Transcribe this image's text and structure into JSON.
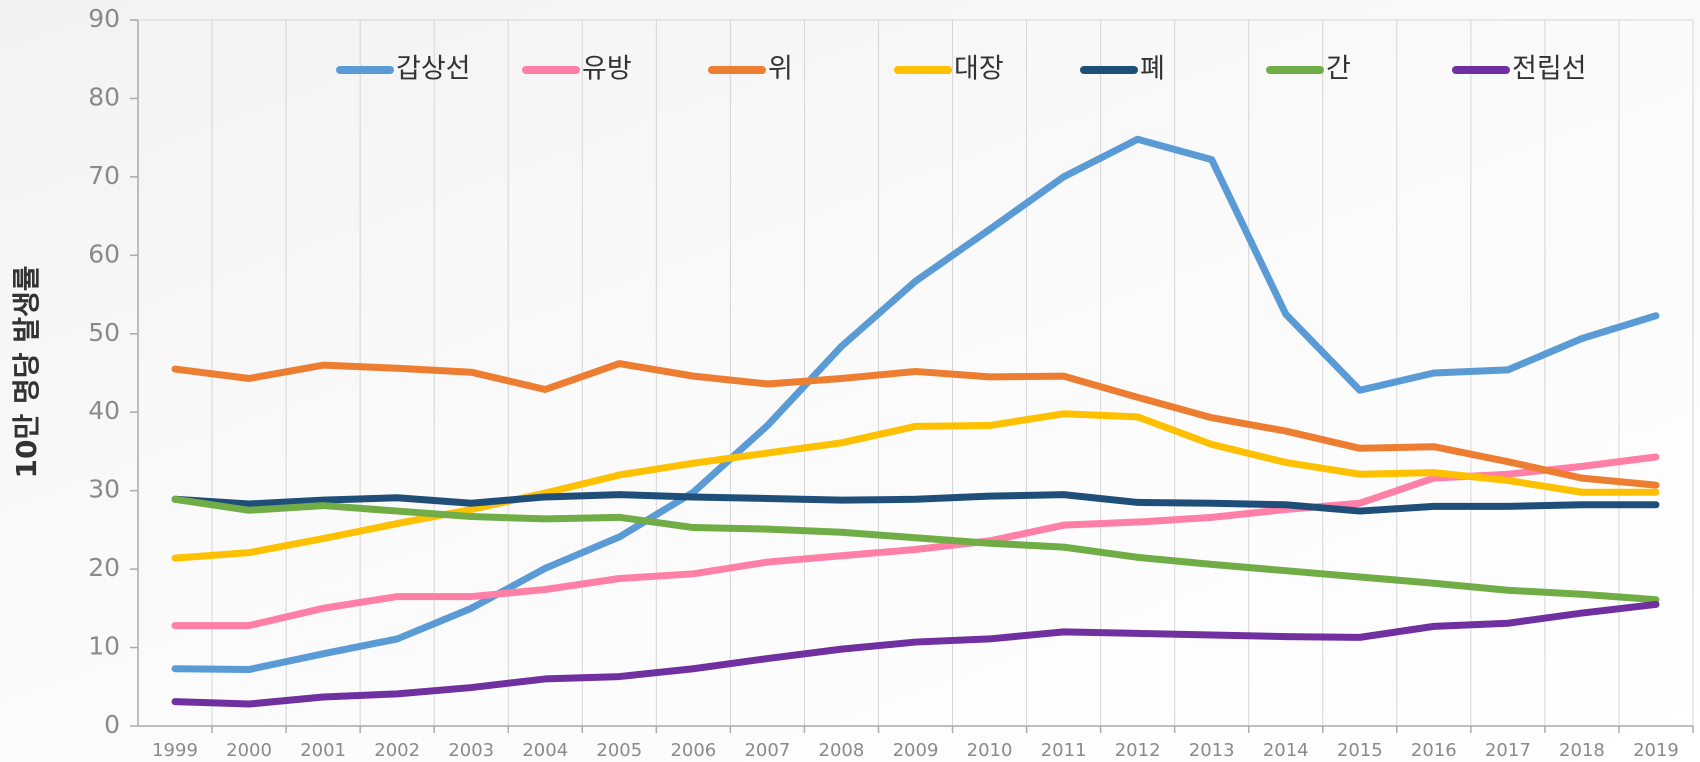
{
  "chart_data": {
    "type": "line",
    "y_label": "10만 명당 발생률",
    "categories": [
      "1999",
      "2000",
      "2001",
      "2002",
      "2003",
      "2004",
      "2005",
      "2006",
      "2007",
      "2008",
      "2009",
      "2010",
      "2011",
      "2012",
      "2013",
      "2014",
      "2015",
      "2016",
      "2017",
      "2018",
      "2019"
    ],
    "series": [
      {
        "name": "갑상선",
        "color": "#5b9bd5",
        "values": [
          7.3,
          7.2,
          9.2,
          11.1,
          15.0,
          20.1,
          24.1,
          29.8,
          38.3,
          48.4,
          56.7,
          63.3,
          70.0,
          74.8,
          72.2,
          52.5,
          42.8,
          45.0,
          45.4,
          49.4,
          52.3
        ]
      },
      {
        "name": "유방",
        "color": "#ff7fa6",
        "values": [
          12.8,
          12.8,
          15.0,
          16.5,
          16.5,
          17.4,
          18.8,
          19.4,
          20.9,
          21.7,
          22.5,
          23.6,
          25.6,
          26.0,
          26.6,
          27.6,
          28.4,
          31.6,
          32.1,
          33.1,
          34.3
        ]
      },
      {
        "name": "위",
        "color": "#ed7d31",
        "values": [
          45.5,
          44.3,
          46.0,
          45.6,
          45.1,
          42.9,
          46.2,
          44.6,
          43.6,
          44.3,
          45.2,
          44.5,
          44.6,
          41.9,
          39.3,
          37.6,
          35.4,
          35.6,
          33.7,
          31.6,
          30.7
        ]
      },
      {
        "name": "대장",
        "color": "#ffc000",
        "values": [
          21.4,
          22.1,
          23.9,
          25.8,
          27.6,
          29.7,
          32.0,
          33.5,
          34.8,
          36.1,
          38.2,
          38.3,
          39.8,
          39.4,
          35.9,
          33.6,
          32.1,
          32.3,
          31.3,
          29.8,
          29.8
        ]
      },
      {
        "name": "폐",
        "color": "#1f4e79",
        "values": [
          28.9,
          28.3,
          28.8,
          29.1,
          28.4,
          29.2,
          29.5,
          29.2,
          29.0,
          28.8,
          28.9,
          29.3,
          29.5,
          28.5,
          28.4,
          28.2,
          27.4,
          28.0,
          28.0,
          28.2,
          28.2
        ]
      },
      {
        "name": "간",
        "color": "#70ad47",
        "values": [
          28.9,
          27.5,
          28.1,
          27.4,
          26.7,
          26.4,
          26.6,
          25.3,
          25.1,
          24.7,
          24.0,
          23.3,
          22.8,
          21.5,
          20.6,
          19.8,
          19.0,
          18.2,
          17.3,
          16.8,
          16.1
        ]
      },
      {
        "name": "전립선",
        "color": "#7030a0",
        "values": [
          3.1,
          2.8,
          3.7,
          4.1,
          4.9,
          6.0,
          6.3,
          7.3,
          8.6,
          9.8,
          10.7,
          11.1,
          12.0,
          11.8,
          11.6,
          11.4,
          11.3,
          12.7,
          13.1,
          14.4,
          15.5
        ]
      }
    ],
    "ylim": [
      0,
      90
    ],
    "yticks": [
      0,
      10,
      20,
      30,
      40,
      50,
      60,
      70,
      80,
      90
    ],
    "grid": true,
    "legend": "top"
  }
}
